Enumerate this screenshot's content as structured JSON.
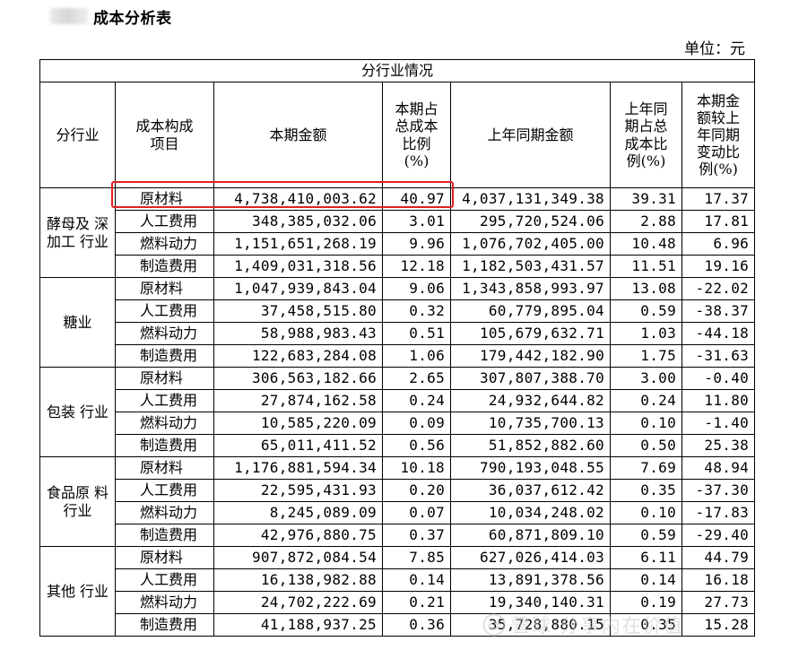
{
  "document": {
    "title": "成本分析表",
    "unit": "单位：元"
  },
  "table": {
    "group_header": "分行业情况",
    "headers": {
      "industry": "分行业",
      "item": "成本构成\n项目",
      "current": "本期金额",
      "current_pct": "本期占\n总成本\n比例\n(%)",
      "prior": "上年同期金额",
      "prior_pct": "上年同\n期占总\n成本比\n例(%)",
      "change_pct": "本期金\n额较上\n年同期\n变动比\n例(%)"
    },
    "groups": [
      {
        "industry": "酵母及\n深加工\n行业",
        "rows": [
          {
            "item": "原材料",
            "current": "4,738,410,003.62",
            "current_pct": "40.97",
            "prior": "4,037,131,349.38",
            "prior_pct": "39.31",
            "change_pct": "17.37"
          },
          {
            "item": "人工费用",
            "current": "348,385,032.06",
            "current_pct": "3.01",
            "prior": "295,720,524.06",
            "prior_pct": "2.88",
            "change_pct": "17.81"
          },
          {
            "item": "燃料动力",
            "current": "1,151,651,268.19",
            "current_pct": "9.96",
            "prior": "1,076,702,405.00",
            "prior_pct": "10.48",
            "change_pct": "6.96"
          },
          {
            "item": "制造费用",
            "current": "1,409,031,318.56",
            "current_pct": "12.18",
            "prior": "1,182,503,431.57",
            "prior_pct": "11.51",
            "change_pct": "19.16"
          }
        ]
      },
      {
        "industry": "糖业",
        "rows": [
          {
            "item": "原材料",
            "current": "1,047,939,843.04",
            "current_pct": "9.06",
            "prior": "1,343,858,993.97",
            "prior_pct": "13.08",
            "change_pct": "-22.02"
          },
          {
            "item": "人工费用",
            "current": "37,458,515.80",
            "current_pct": "0.32",
            "prior": "60,779,895.04",
            "prior_pct": "0.59",
            "change_pct": "-38.37"
          },
          {
            "item": "燃料动力",
            "current": "58,988,983.43",
            "current_pct": "0.51",
            "prior": "105,679,632.71",
            "prior_pct": "1.03",
            "change_pct": "-44.18"
          },
          {
            "item": "制造费用",
            "current": "122,683,284.08",
            "current_pct": "1.06",
            "prior": "179,442,182.90",
            "prior_pct": "1.75",
            "change_pct": "-31.63"
          }
        ]
      },
      {
        "industry": "包装\n行业",
        "rows": [
          {
            "item": "原材料",
            "current": "306,563,182.66",
            "current_pct": "2.65",
            "prior": "307,807,388.70",
            "prior_pct": "3.00",
            "change_pct": "-0.40"
          },
          {
            "item": "人工费用",
            "current": "27,874,162.58",
            "current_pct": "0.24",
            "prior": "24,932,644.82",
            "prior_pct": "0.24",
            "change_pct": "11.80"
          },
          {
            "item": "燃料动力",
            "current": "10,585,220.09",
            "current_pct": "0.09",
            "prior": "10,735,700.13",
            "prior_pct": "0.10",
            "change_pct": "-1.40"
          },
          {
            "item": "制造费用",
            "current": "65,011,411.52",
            "current_pct": "0.56",
            "prior": "51,852,882.60",
            "prior_pct": "0.50",
            "change_pct": "25.38"
          }
        ]
      },
      {
        "industry": "食品原\n料行业",
        "rows": [
          {
            "item": "原材料",
            "current": "1,176,881,594.34",
            "current_pct": "10.18",
            "prior": "790,193,048.55",
            "prior_pct": "7.69",
            "change_pct": "48.94"
          },
          {
            "item": "人工费用",
            "current": "22,595,431.93",
            "current_pct": "0.20",
            "prior": "36,037,612.42",
            "prior_pct": "0.35",
            "change_pct": "-37.30"
          },
          {
            "item": "燃料动力",
            "current": "8,245,089.09",
            "current_pct": "0.07",
            "prior": "10,034,248.02",
            "prior_pct": "0.10",
            "change_pct": "-17.83"
          },
          {
            "item": "制造费用",
            "current": "42,976,880.75",
            "current_pct": "0.37",
            "prior": "60,871,809.10",
            "prior_pct": "0.59",
            "change_pct": "-29.40"
          }
        ]
      },
      {
        "industry": "其他\n行业",
        "rows": [
          {
            "item": "原材料",
            "current": "907,872,084.54",
            "current_pct": "7.85",
            "prior": "627,026,414.03",
            "prior_pct": "6.11",
            "change_pct": "44.79"
          },
          {
            "item": "人工费用",
            "current": "16,138,982.88",
            "current_pct": "0.14",
            "prior": "13,891,378.56",
            "prior_pct": "0.14",
            "change_pct": "16.18"
          },
          {
            "item": "燃料动力",
            "current": "24,702,222.69",
            "current_pct": "0.21",
            "prior": "19,340,140.31",
            "prior_pct": "0.19",
            "change_pct": "27.73"
          },
          {
            "item": "制造费用",
            "current": "41,188,937.25",
            "current_pct": "0.36",
            "prior": "35,728,880.15",
            "prior_pct": "0.35",
            "change_pct": "15.28"
          }
        ]
      }
    ]
  },
  "highlight": {
    "color": "#e12020"
  },
  "watermark": {
    "text": "雪球·分享内在价值",
    "icon": "snowball-logo-icon"
  }
}
